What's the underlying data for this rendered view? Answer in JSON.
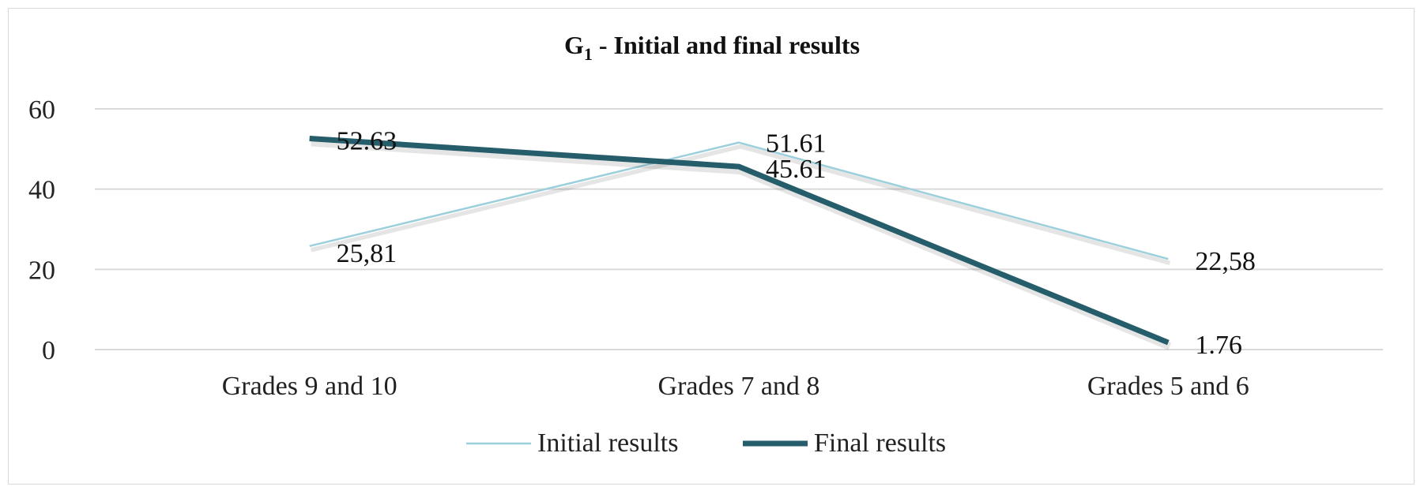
{
  "chart_data": {
    "type": "line",
    "title_main": "G",
    "title_sub": "1",
    "title_rest": " - Initial and final results",
    "categories": [
      "Grades 9 and 10",
      "Grades 7 and 8",
      "Grades 5 and 6"
    ],
    "ylim": [
      0,
      60
    ],
    "yticks": [
      0,
      20,
      40,
      60
    ],
    "grid": true,
    "legend_position": "bottom",
    "series": [
      {
        "name": "Initial results",
        "values": [
          25.81,
          51.61,
          22.58
        ],
        "labels": [
          "25,81",
          "51.61",
          "22,58"
        ],
        "color": "#9ccfdc"
      },
      {
        "name": "Final results",
        "values": [
          52.63,
          45.61,
          1.76
        ],
        "labels": [
          "52.63",
          "45.61",
          "1.76"
        ],
        "color": "#265d6a"
      }
    ]
  }
}
